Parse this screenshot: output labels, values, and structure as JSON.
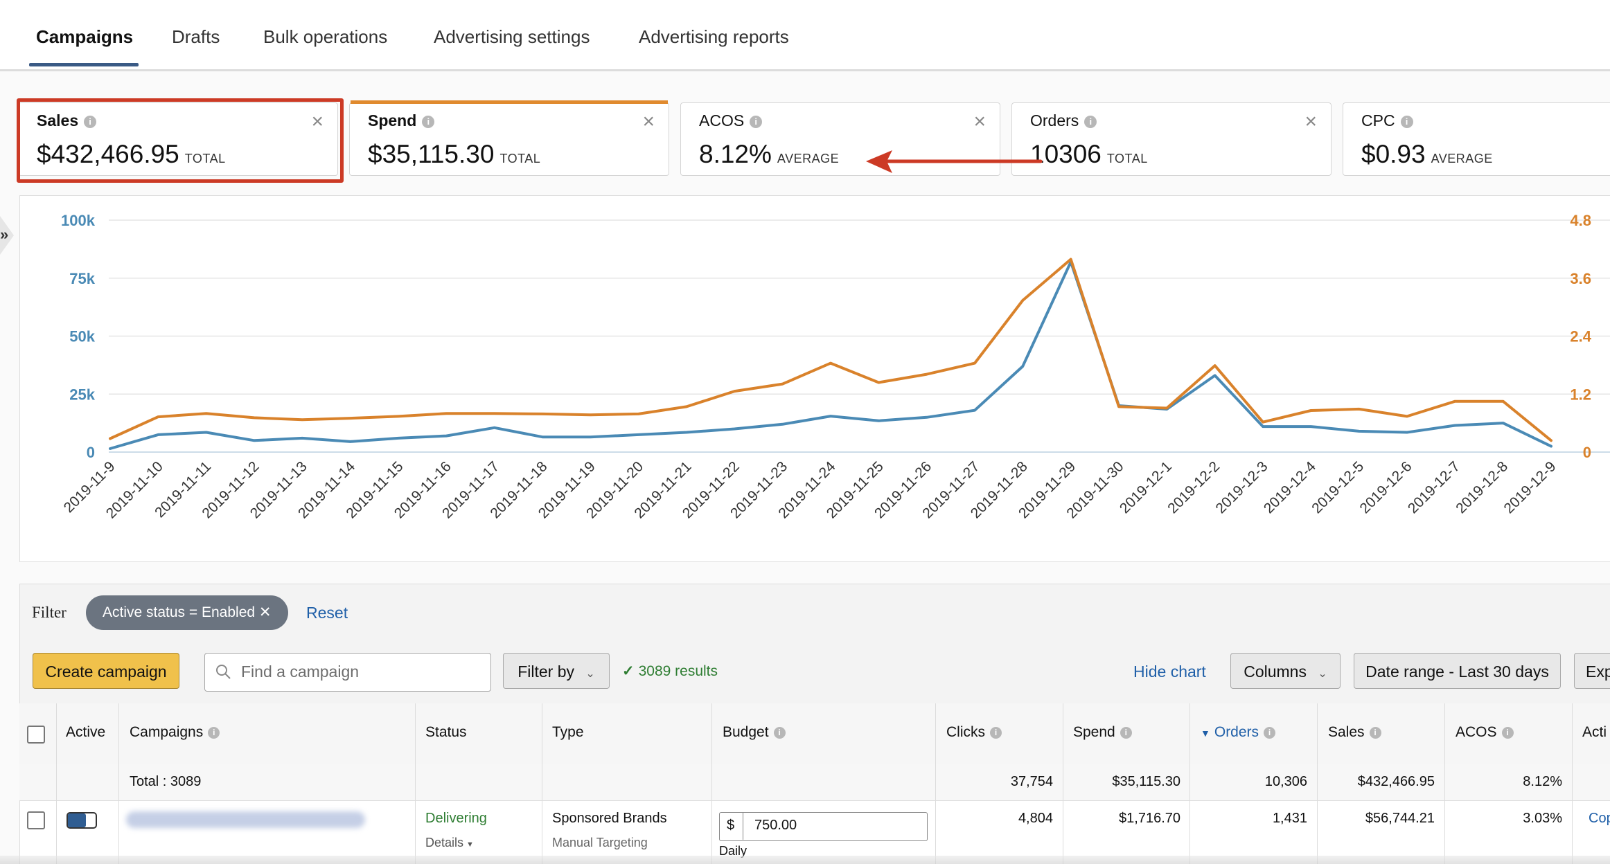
{
  "tabs": [
    {
      "label": "Campaigns",
      "active": true
    },
    {
      "label": "Drafts",
      "active": false
    },
    {
      "label": "Bulk operations",
      "active": false
    },
    {
      "label": "Advertising settings",
      "active": false
    },
    {
      "label": "Advertising reports",
      "active": false
    }
  ],
  "metrics": [
    {
      "label": "Sales",
      "value": "$432,466.95",
      "sub": "TOTAL"
    },
    {
      "label": "Spend",
      "value": "$35,115.30",
      "sub": "TOTAL"
    },
    {
      "label": "ACOS",
      "value": "8.12%",
      "sub": "AVERAGE"
    },
    {
      "label": "Orders",
      "value": "10306",
      "sub": "TOTAL"
    },
    {
      "label": "CPC",
      "value": "$0.93",
      "sub": "AVERAGE"
    }
  ],
  "colors": {
    "sales_line": "#4a8ab5",
    "spend_line": "#d9822b",
    "highlight": "#cc3a25",
    "link": "#1f5fa8",
    "button_primary": "#f0c14b"
  },
  "chart_data": {
    "type": "line",
    "x": [
      "2019-11-9",
      "2019-11-10",
      "2019-11-11",
      "2019-11-12",
      "2019-11-13",
      "2019-11-14",
      "2019-11-15",
      "2019-11-16",
      "2019-11-17",
      "2019-11-18",
      "2019-11-19",
      "2019-11-20",
      "2019-11-21",
      "2019-11-22",
      "2019-11-23",
      "2019-11-24",
      "2019-11-25",
      "2019-11-26",
      "2019-11-27",
      "2019-11-28",
      "2019-11-29",
      "2019-11-30",
      "2019-12-1",
      "2019-12-2",
      "2019-12-3",
      "2019-12-4",
      "2019-12-5",
      "2019-12-6",
      "2019-12-7",
      "2019-12-8",
      "2019-12-9"
    ],
    "left_ticks": [
      "0",
      "25k",
      "50k",
      "75k",
      "100k"
    ],
    "right_ticks": [
      "0",
      "1.2",
      "2.4",
      "3.6",
      "4.8"
    ],
    "ylim_left": [
      0,
      100000
    ],
    "ylim_right": [
      0,
      4.8
    ],
    "grid": true,
    "series": [
      {
        "axis": "left",
        "color": "#4a8ab5",
        "values": [
          1500,
          7500,
          8500,
          5000,
          6000,
          4500,
          6000,
          7000,
          10500,
          6500,
          6500,
          7500,
          8500,
          10000,
          12000,
          15500,
          13500,
          15000,
          18000,
          37000,
          82000,
          20000,
          18500,
          33000,
          11000,
          11000,
          9000,
          8500,
          11500,
          12500,
          2500
        ]
      },
      {
        "axis": "right",
        "color": "#d9822b",
        "values": [
          0.28,
          0.73,
          0.8,
          0.71,
          0.67,
          0.7,
          0.74,
          0.8,
          0.8,
          0.79,
          0.77,
          0.79,
          0.94,
          1.26,
          1.41,
          1.84,
          1.44,
          1.61,
          1.84,
          3.14,
          3.99,
          0.94,
          0.91,
          1.79,
          0.62,
          0.86,
          0.89,
          0.74,
          1.05,
          1.05,
          0.24
        ]
      }
    ]
  },
  "side_toggle_glyph": "»",
  "filter": {
    "label": "Filter",
    "chip": "Active status = Enabled ✕",
    "reset": "Reset"
  },
  "toolbar": {
    "create": "Create campaign",
    "search_placeholder": "Find a campaign",
    "filter_by": "Filter by",
    "results": "3089 results",
    "hide_chart": "Hide chart",
    "columns": "Columns",
    "date_range": "Date range - Last 30 days",
    "export": "Exp"
  },
  "table": {
    "headers": {
      "active": "Active",
      "campaigns": "Campaigns",
      "status": "Status",
      "type": "Type",
      "budget": "Budget",
      "clicks": "Clicks",
      "spend": "Spend",
      "orders": "Orders",
      "sales": "Sales",
      "acos": "ACOS",
      "actions": "Acti"
    },
    "total": {
      "label": "Total : 3089",
      "clicks": "37,754",
      "spend": "$35,115.30",
      "orders": "10,306",
      "sales": "$432,466.95",
      "acos": "8.12%"
    },
    "row": {
      "status": "Delivering",
      "details": "Details",
      "type": "Sponsored Brands",
      "targeting": "Manual Targeting",
      "currency": "$",
      "budget": "750.00",
      "budget_period": "Daily",
      "clicks": "4,804",
      "spend": "$1,716.70",
      "orders": "1,431",
      "sales": "$56,744.21",
      "acos": "3.03%",
      "action": "Cop"
    }
  }
}
